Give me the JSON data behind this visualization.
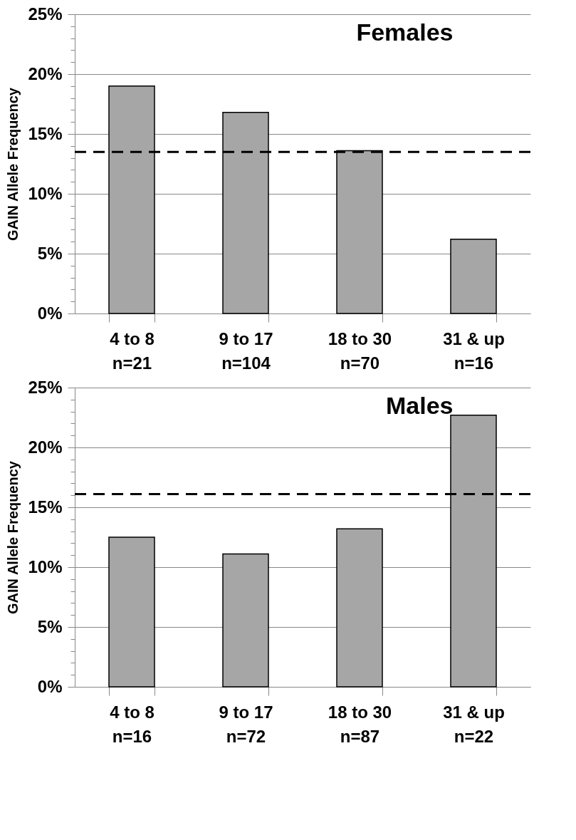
{
  "chart_data": [
    {
      "type": "bar",
      "title": "Females",
      "ylabel": "GAIN Allele Frequency",
      "categories": [
        "4 to 8\nn=21",
        "9 to 17\nn=104",
        "18 to 30\nn=70",
        "31 & up\nn=16"
      ],
      "values": [
        19.0,
        16.8,
        13.6,
        6.2
      ],
      "color": "#a6a6a6",
      "ylim": [
        0,
        25
      ],
      "yticks": [
        {
          "value": 0,
          "label": "0%"
        },
        {
          "value": 1,
          "label": null
        },
        {
          "value": 2,
          "label": null
        },
        {
          "value": 3,
          "label": null
        },
        {
          "value": 4,
          "label": null
        },
        {
          "value": 5,
          "label": "5%"
        },
        {
          "value": 6,
          "label": null
        },
        {
          "value": 7,
          "label": null
        },
        {
          "value": 8,
          "label": null
        },
        {
          "value": 9,
          "label": null
        },
        {
          "value": 10,
          "label": "10%"
        },
        {
          "value": 11,
          "label": null
        },
        {
          "value": 12,
          "label": null
        },
        {
          "value": 13,
          "label": null
        },
        {
          "value": 14,
          "label": null
        },
        {
          "value": 15,
          "label": "15%"
        },
        {
          "value": 16,
          "label": null
        },
        {
          "value": 17,
          "label": null
        },
        {
          "value": 18,
          "label": null
        },
        {
          "value": 19,
          "label": null
        },
        {
          "value": 20,
          "label": "20%"
        },
        {
          "value": 21,
          "label": null
        },
        {
          "value": 22,
          "label": null
        },
        {
          "value": 23,
          "label": null
        },
        {
          "value": 24,
          "label": null
        },
        {
          "value": 25,
          "label": "25%"
        }
      ],
      "grid": "y",
      "ref_lines": [
        {
          "axis": "y",
          "value": 13.5,
          "color": "#000000",
          "line_style": "dashed"
        }
      ]
    },
    {
      "type": "bar",
      "title": "Males",
      "ylabel": "GAIN Allele Frequency",
      "categories": [
        "4 to 8\nn=16",
        "9 to 17\nn=72",
        "18 to 30\nn=87",
        "31 & up\nn=22"
      ],
      "values": [
        12.5,
        11.1,
        13.2,
        22.7
      ],
      "color": "#a6a6a6",
      "ylim": [
        0,
        25
      ],
      "yticks": [
        {
          "value": 0,
          "label": "0%"
        },
        {
          "value": 1,
          "label": null
        },
        {
          "value": 2,
          "label": null
        },
        {
          "value": 3,
          "label": null
        },
        {
          "value": 4,
          "label": null
        },
        {
          "value": 5,
          "label": "5%"
        },
        {
          "value": 6,
          "label": null
        },
        {
          "value": 7,
          "label": null
        },
        {
          "value": 8,
          "label": null
        },
        {
          "value": 9,
          "label": null
        },
        {
          "value": 10,
          "label": "10%"
        },
        {
          "value": 11,
          "label": null
        },
        {
          "value": 12,
          "label": null
        },
        {
          "value": 13,
          "label": null
        },
        {
          "value": 14,
          "label": null
        },
        {
          "value": 15,
          "label": "15%"
        },
        {
          "value": 16,
          "label": null
        },
        {
          "value": 17,
          "label": null
        },
        {
          "value": 18,
          "label": null
        },
        {
          "value": 19,
          "label": null
        },
        {
          "value": 20,
          "label": "20%"
        },
        {
          "value": 21,
          "label": null
        },
        {
          "value": 22,
          "label": null
        },
        {
          "value": 23,
          "label": null
        },
        {
          "value": 24,
          "label": null
        },
        {
          "value": 25,
          "label": "25%"
        }
      ],
      "grid": "y",
      "ref_lines": [
        {
          "axis": "y",
          "value": 16.1,
          "color": "#000000",
          "line_style": "dashed"
        }
      ]
    }
  ]
}
